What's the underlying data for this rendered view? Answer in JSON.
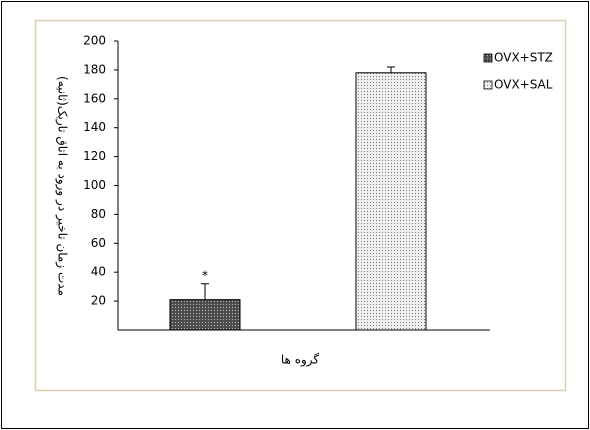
{
  "chart_data": {
    "type": "bar",
    "y_label": "مدت زمان تاخیر در ورود به اتاق تاریک(ثانیه)",
    "x_label": "گروه ها",
    "categories": [
      null
    ],
    "series": [
      {
        "name": "OVX+STZ",
        "color": "#4d4d4d",
        "values": [
          21
        ],
        "errors": [
          11
        ]
      },
      {
        "name": "OVX+SAL",
        "color": "#f0f0f0",
        "values": [
          178
        ],
        "errors": [
          4
        ]
      }
    ],
    "annotations": [
      {
        "text": "*",
        "series": 0
      }
    ],
    "ylim": [
      0,
      200
    ],
    "yticks": [
      20,
      40,
      60,
      80,
      100,
      120,
      140,
      160,
      180,
      200
    ],
    "legend": "right"
  }
}
